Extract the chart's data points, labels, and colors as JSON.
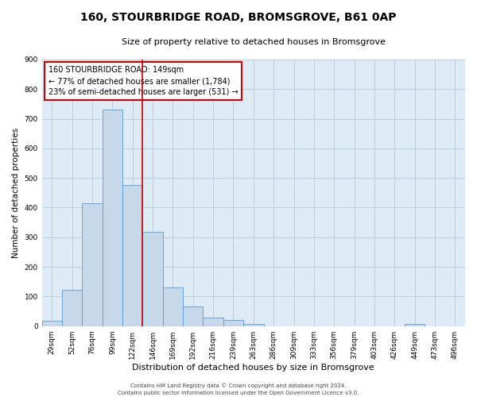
{
  "title": "160, STOURBRIDGE ROAD, BROMSGROVE, B61 0AP",
  "subtitle": "Size of property relative to detached houses in Bromsgrove",
  "xlabel": "Distribution of detached houses by size in Bromsgrove",
  "ylabel": "Number of detached properties",
  "bar_labels": [
    "29sqm",
    "52sqm",
    "76sqm",
    "99sqm",
    "122sqm",
    "146sqm",
    "169sqm",
    "192sqm",
    "216sqm",
    "239sqm",
    "263sqm",
    "286sqm",
    "309sqm",
    "333sqm",
    "356sqm",
    "379sqm",
    "403sqm",
    "426sqm",
    "449sqm",
    "473sqm",
    "496sqm"
  ],
  "bar_heights": [
    18,
    123,
    415,
    730,
    475,
    318,
    130,
    65,
    28,
    22,
    8,
    0,
    0,
    0,
    0,
    0,
    0,
    0,
    8,
    0,
    0
  ],
  "bar_color": "#c5d9ea",
  "bar_edge_color": "#5b9bd5",
  "vline_color": "#cc0000",
  "ylim": [
    0,
    900
  ],
  "yticks": [
    0,
    100,
    200,
    300,
    400,
    500,
    600,
    700,
    800,
    900
  ],
  "annotation_title": "160 STOURBRIDGE ROAD: 149sqm",
  "annotation_line2": "← 77% of detached houses are smaller (1,784)",
  "annotation_line3": "23% of semi-detached houses are larger (531) →",
  "annotation_box_color": "#cc0000",
  "footer_line1": "Contains HM Land Registry data © Crown copyright and database right 2024.",
  "footer_line2": "Contains public sector information licensed under the Open Government Licence v3.0.",
  "grid_color": "#b8cfe0",
  "background_color": "#deeaf4",
  "title_fontsize": 10,
  "subtitle_fontsize": 8,
  "xlabel_fontsize": 8,
  "ylabel_fontsize": 7.5,
  "tick_fontsize": 6.5,
  "annotation_fontsize": 7,
  "footer_fontsize": 5
}
